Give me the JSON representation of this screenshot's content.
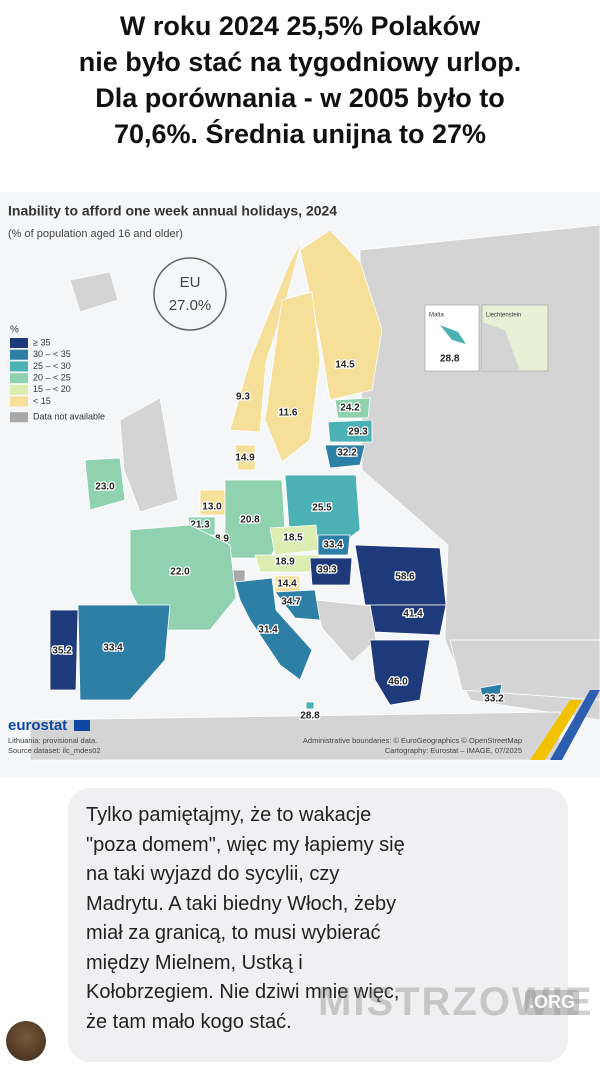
{
  "header": {
    "lines": [
      "W roku 2024 25,5% Polaków",
      "nie było stać na tygodniowy urlop.",
      "Dla porównania - w 2005 było to",
      "70,6%. Średnia unijna to 27%"
    ]
  },
  "map": {
    "title": "Inability to afford one week annual holidays, 2024",
    "subtitle": "(% of population aged 16 and older)",
    "eu_label": "EU",
    "eu_value": "27.0%",
    "legend": {
      "unit": "%",
      "items": [
        {
          "label": "≥ 35",
          "color": "#1f3a7a"
        },
        {
          "label": "30 – < 35",
          "color": "#2e7fa6"
        },
        {
          "label": "25 – < 30",
          "color": "#4cb1b5"
        },
        {
          "label": "20 – < 25",
          "color": "#90d2b0"
        },
        {
          "label": "15 – < 20",
          "color": "#dcedb2"
        },
        {
          "label": "< 15",
          "color": "#f6df98"
        },
        {
          "label": "Data not available",
          "color": "#a8a8a8"
        }
      ]
    },
    "regions": [
      {
        "value": "14.5",
        "color": "#f6df98"
      },
      {
        "value": "9.3",
        "color": "#f6df98"
      },
      {
        "value": "11.6",
        "color": "#f6df98"
      },
      {
        "value": "24.2",
        "color": "#90d2b0"
      },
      {
        "value": "29.3",
        "color": "#4cb1b5"
      },
      {
        "value": "32.2",
        "color": "#2e7fa6"
      },
      {
        "value": "14.9",
        "color": "#f6df98"
      },
      {
        "value": "23.0",
        "color": "#90d2b0"
      },
      {
        "value": "13.0",
        "color": "#f6df98"
      },
      {
        "value": "21.3",
        "color": "#90d2b0"
      },
      {
        "value": "20.8",
        "color": "#90d2b0"
      },
      {
        "value": "25.5",
        "color": "#4cb1b5"
      },
      {
        "value": "8.9",
        "color": "#f6df98"
      },
      {
        "value": "18.5",
        "color": "#dcedb2"
      },
      {
        "value": "33.4",
        "color": "#2e7fa6"
      },
      {
        "value": "22.0",
        "color": "#90d2b0"
      },
      {
        "value": "18.9",
        "color": "#dcedb2"
      },
      {
        "value": "39.3",
        "color": "#1f3a7a"
      },
      {
        "value": "58.6",
        "color": "#1f3a7a"
      },
      {
        "value": "14.4",
        "color": "#f6df98"
      },
      {
        "value": "34.7",
        "color": "#2e7fa6"
      },
      {
        "value": "41.4",
        "color": "#1f3a7a"
      },
      {
        "value": "31.4",
        "color": "#2e7fa6"
      },
      {
        "value": "35.2",
        "color": "#1f3a7a"
      },
      {
        "value": "33.4",
        "color": "#2e7fa6"
      },
      {
        "value": "46.0",
        "color": "#1f3a7a"
      },
      {
        "value": "28.8",
        "color": "#4cb1b5"
      },
      {
        "value": "33.2",
        "color": "#2e7fa6"
      }
    ],
    "insets": [
      {
        "name": "Malta",
        "value": "28.8"
      },
      {
        "name": "Liechtenstein"
      }
    ],
    "brand": "eurostat",
    "notes_left": [
      "Lithuania: provisional data.",
      "Source dataset: ilc_mdes02"
    ],
    "notes_right": [
      "Administrative boundaries: © EuroGeographics © OpenStreetMap",
      "Cartography: Eurostat – IMAGE, 07/2025"
    ]
  },
  "comment": {
    "lines": [
      "Tylko pamiętajmy, że to wakacje",
      "\"poza domem\", więc my łapiemy się",
      "na taki wyjazd do sycylii, czy",
      "Madrytu. A taki biedny Włoch, żeby",
      "miał za granicą, to musi wybierać",
      "między Mielnem, Ustką i",
      "Kołobrzegiem. Nie dziwi mnie więc,",
      "że tam mało kogo stać."
    ]
  },
  "watermark": {
    "text": "MISTRZOWIE",
    "suffix": ".ORG"
  }
}
